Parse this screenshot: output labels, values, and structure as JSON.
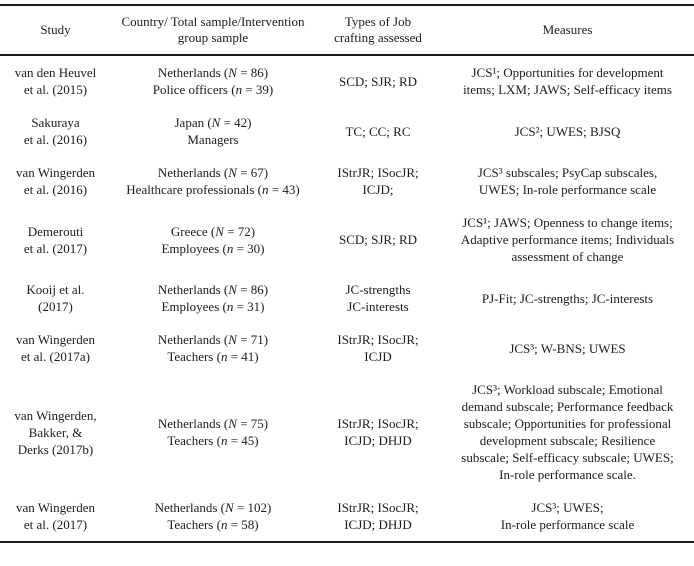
{
  "colors": {
    "text": "#1c1c1c",
    "background": "#ffffff",
    "rule": "#1b1b1b"
  },
  "table": {
    "columns": [
      {
        "label": "Study"
      },
      {
        "label": "Country/ Total sample/Intervention\ngroup sample"
      },
      {
        "label": "Types of Job\ncrafting assessed"
      },
      {
        "label": "Measures"
      }
    ],
    "rows": [
      {
        "study": "van den Heuvel\net al. (2015)",
        "sample": "Netherlands (N = 86)\nPolice officers (n = 39)",
        "types": "SCD; SJR; RD",
        "measures": "JCS¹; Opportunities for development\nitems; LXM; JAWS; Self-efficacy items"
      },
      {
        "study": "Sakuraya\net al. (2016)",
        "sample": "Japan (N = 42)\nManagers",
        "types": "TC; CC; RC",
        "measures": "JCS²; UWES; BJSQ"
      },
      {
        "study": "van Wingerden\net al. (2016)",
        "sample": "Netherlands (N = 67)\nHealthcare professionals (n = 43)",
        "types": "IStrJR; ISocJR;\nICJD;",
        "measures": "JCS³ subscales; PsyCap subscales,\nUWES; In-role performance scale"
      },
      {
        "study": "Demerouti\net al. (2017)",
        "sample": "Greece (N = 72)\nEmployees (n = 30)",
        "types": "SCD; SJR; RD",
        "measures": "JCS¹; JAWS; Openness to change items;\nAdaptive performance items; Individuals\nassessment of change"
      },
      {
        "study": "Kooij et al.\n(2017)",
        "sample": "Netherlands (N = 86)\nEmployees (n = 31)",
        "types": "JC-strengths\nJC-interests",
        "measures": "PJ-Fit; JC-strengths; JC-interests"
      },
      {
        "study": "van Wingerden\net al. (2017a)",
        "sample": "Netherlands (N = 71)\nTeachers (n = 41)",
        "types": "IStrJR; ISocJR;\nICJD",
        "measures": "JCS³; W-BNS; UWES"
      },
      {
        "study": "van Wingerden,\nBakker, &\nDerks (2017b)",
        "sample": "Netherlands (N = 75)\nTeachers (n = 45)",
        "types": "IStrJR; ISocJR;\nICJD; DHJD",
        "measures": "JCS³; Workload subscale; Emotional\ndemand subscale; Performance feedback\nsubscale; Opportunities for professional\ndevelopment subscale; Resilience\nsubscale; Self-efficacy subscale; UWES;\nIn-role performance scale."
      },
      {
        "study": "van Wingerden\net al. (2017)",
        "sample": "Netherlands (N = 102)\nTeachers (n = 58)",
        "types": "IStrJR; ISocJR;\nICJD; DHJD",
        "measures": "JCS³; UWES;\nIn-role performance scale"
      }
    ]
  }
}
